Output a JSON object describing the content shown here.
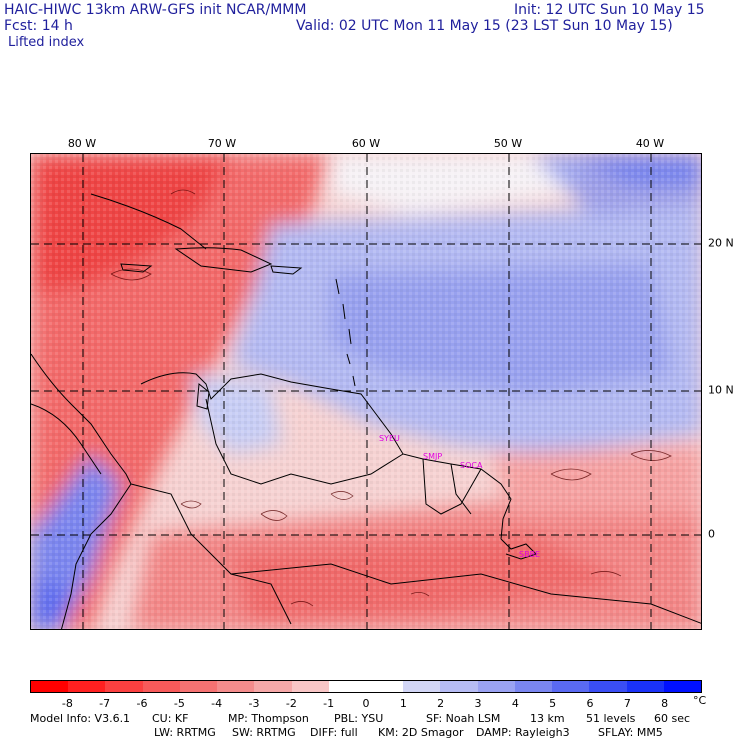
{
  "header": {
    "model_line": "HAIC-HIWC 13km ARW-GFS init   NCAR/MMM",
    "init_line": "Init: 12 UTC Sun 10 May 15",
    "fcst_line": "Fcst:   14 h",
    "valid_line": "Valid: 02 UTC Mon 11 May 15 (23 LST Sun 10 May 15)",
    "field_name": "Lifted index"
  },
  "map": {
    "lon_labels": [
      "80 W",
      "70 W",
      "60 W",
      "50 W",
      "40 W"
    ],
    "lat_labels": [
      "20 N",
      "10 N",
      "0"
    ],
    "stations": [
      "SYEU",
      "SMJP",
      "SOCA",
      "SBBE"
    ]
  },
  "colorbar": {
    "labels": [
      "-8",
      "-7",
      "-6",
      "-5",
      "-4",
      "-3",
      "-2",
      "-1",
      "0",
      "1",
      "2",
      "3",
      "4",
      "5",
      "6",
      "7",
      "8"
    ],
    "unit": "°C",
    "colors": [
      "#ff0000",
      "#ff2020",
      "#fb4040",
      "#f75a5a",
      "#f57272",
      "#f48c8c",
      "#f6a8a8",
      "#f9c6c6",
      "#ffffff",
      "#ffffff",
      "#d2d6f6",
      "#b6bcf4",
      "#9aa2f2",
      "#7a86f0",
      "#5a6af2",
      "#3a4ef4",
      "#1a32f8",
      "#0010ff"
    ]
  },
  "footer": {
    "line1_left": "Model Info: V3.6.1",
    "cu": "CU: KF",
    "mp": "MP: Thompson",
    "pbl": "PBL: YSU",
    "sf": "SF: Noah LSM",
    "res": "13 km",
    "levels": "51 levels",
    "dt": "60 sec",
    "lw": "LW: RRTMG",
    "sw": "SW: RRTMG",
    "diff": "DIFF: full",
    "km": "KM: 2D Smagor",
    "damp": "DAMP: Rayleigh3",
    "sflay": "SFLAY: MM5"
  }
}
